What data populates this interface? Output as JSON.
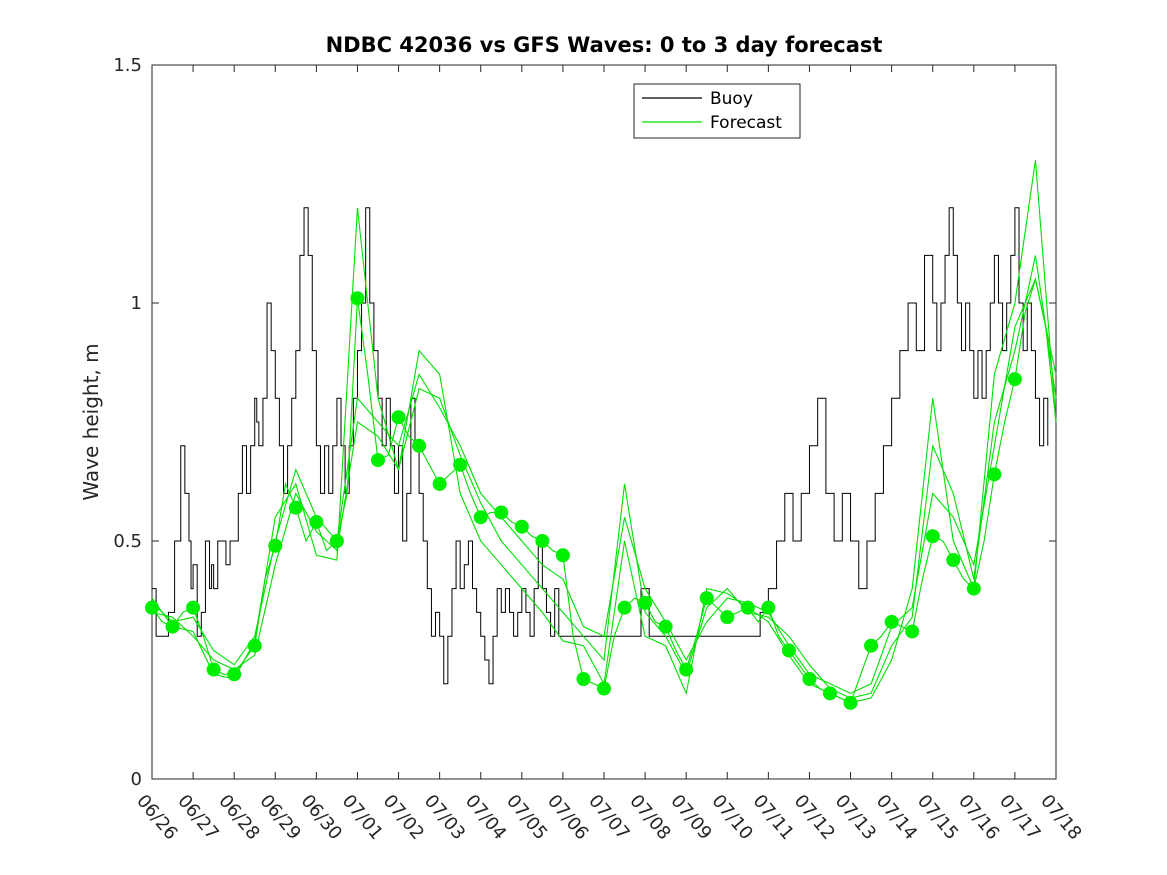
{
  "chart_data": {
    "type": "line",
    "title": "NDBC 42036 vs GFS Waves: 0 to 3 day forecast",
    "xlabel": "",
    "ylabel": "Wave height, m",
    "ylim": [
      0,
      1.5
    ],
    "xlim": [
      "06/26",
      "07/18"
    ],
    "x_ticks": [
      "06/26",
      "06/27",
      "06/28",
      "06/29",
      "06/30",
      "07/01",
      "07/02",
      "07/03",
      "07/04",
      "07/05",
      "07/06",
      "07/07",
      "07/08",
      "07/09",
      "07/10",
      "07/11",
      "07/12",
      "07/13",
      "07/14",
      "07/15",
      "07/16",
      "07/17",
      "07/18"
    ],
    "y_ticks": [
      0,
      0.5,
      1,
      1.5
    ],
    "y_tick_labels": [
      "0",
      "0.5",
      "1",
      "1.5"
    ],
    "legend": {
      "placement": "top-right",
      "entries": [
        "Buoy",
        "Forecast"
      ]
    },
    "colors": {
      "buoy": "#000000",
      "forecast": "#00e000",
      "analysis_points": "#00ee00"
    },
    "series": [
      {
        "name": "Buoy",
        "x": [
          0,
          0.1,
          0.4,
          0.55,
          0.7,
          0.8,
          0.9,
          0.95,
          1,
          1.1,
          1.2,
          1.3,
          1.4,
          1.45,
          1.5,
          1.6,
          1.8,
          1.9,
          2.1,
          2.2,
          2.3,
          2.4,
          2.5,
          2.55,
          2.6,
          2.7,
          2.8,
          2.9,
          3,
          3.1,
          3.2,
          3.3,
          3.4,
          3.5,
          3.6,
          3.7,
          3.8,
          3.9,
          4,
          4.1,
          4.2,
          4.3,
          4.4,
          4.5,
          4.6,
          4.7,
          4.8,
          4.9,
          5,
          5.1,
          5.2,
          5.3,
          5.4,
          5.5,
          5.6,
          5.7,
          5.8,
          5.9,
          6,
          6.1,
          6.2,
          6.3,
          6.4,
          6.5,
          6.6,
          6.7,
          6.8,
          6.9,
          7,
          7.1,
          7.2,
          7.3,
          7.4,
          7.5,
          7.6,
          7.7,
          7.8,
          7.9,
          8,
          8.1,
          8.2,
          8.3,
          8.4,
          8.5,
          8.6,
          8.7,
          8.8,
          8.9,
          9,
          9.1,
          9.2,
          9.3,
          9.4,
          9.5,
          9.6,
          9.7,
          9.8,
          9.9,
          10,
          10.1,
          10.2,
          10.3,
          10.4,
          10.5,
          10.6,
          10.7,
          10.8,
          10.9,
          11,
          11.1,
          11.2,
          11.3,
          11.4,
          11.5,
          11.6,
          11.7,
          11.8,
          11.9,
          12,
          12.1,
          12.2,
          12.3,
          12.4,
          12.5,
          12.6,
          12.7,
          12.8,
          12.9,
          13,
          13.1,
          13.2,
          13.3,
          13.4,
          13.5,
          13.6,
          13.7,
          13.8,
          13.9,
          14,
          14.2,
          14.4,
          14.6,
          14.8,
          15,
          15.2,
          15.4,
          15.6,
          15.8,
          16,
          16.2,
          16.4,
          16.6,
          16.8,
          17,
          17.2,
          17.4,
          17.6,
          17.8,
          18,
          18.2,
          18.4,
          18.6,
          18.8,
          19,
          19.1,
          19.2,
          19.3,
          19.4,
          19.5,
          19.6,
          19.7,
          19.8,
          19.9,
          20,
          20.1,
          20.2,
          20.3,
          20.4,
          20.5,
          20.6,
          20.7,
          20.8,
          20.9,
          21,
          21.1,
          21.2,
          21.3,
          21.4,
          21.5,
          21.6,
          21.7,
          21.8
        ],
        "values": [
          0.4,
          0.3,
          0.35,
          0.5,
          0.7,
          0.6,
          0.5,
          0.4,
          0.45,
          0.3,
          0.35,
          0.5,
          0.4,
          0.45,
          0.4,
          0.5,
          0.45,
          0.5,
          0.6,
          0.7,
          0.6,
          0.7,
          0.8,
          0.75,
          0.7,
          0.8,
          1.0,
          0.9,
          0.8,
          0.7,
          0.6,
          0.7,
          0.8,
          0.9,
          1.1,
          1.2,
          1.1,
          0.9,
          0.7,
          0.6,
          0.7,
          0.6,
          0.7,
          0.8,
          0.7,
          0.6,
          0.7,
          0.8,
          0.9,
          1.0,
          1.2,
          1.0,
          0.9,
          0.8,
          0.7,
          0.8,
          0.7,
          0.6,
          0.7,
          0.5,
          0.6,
          0.8,
          0.7,
          0.6,
          0.5,
          0.4,
          0.3,
          0.35,
          0.3,
          0.2,
          0.3,
          0.4,
          0.5,
          0.4,
          0.45,
          0.5,
          0.4,
          0.35,
          0.3,
          0.25,
          0.2,
          0.3,
          0.4,
          0.35,
          0.4,
          0.35,
          0.3,
          0.35,
          0.4,
          0.35,
          0.3,
          0.4,
          0.5,
          0.4,
          0.35,
          0.3,
          0.4,
          0.3,
          0.3,
          0.3,
          0.3,
          0.3,
          0.3,
          0.3,
          0.3,
          0.3,
          0.3,
          0.3,
          0.3,
          0.3,
          0.3,
          0.3,
          0.3,
          0.3,
          0.3,
          0.3,
          0.3,
          0.4,
          0.4,
          0.3,
          0.3,
          0.3,
          0.3,
          0.3,
          0.3,
          0.3,
          0.3,
          0.3,
          0.3,
          0.3,
          0.3,
          0.3,
          0.3,
          0.3,
          0.3,
          0.3,
          0.3,
          0.3,
          0.3,
          0.3,
          0.3,
          0.3,
          0.35,
          0.4,
          0.5,
          0.6,
          0.5,
          0.6,
          0.7,
          0.8,
          0.6,
          0.5,
          0.6,
          0.5,
          0.4,
          0.5,
          0.6,
          0.7,
          0.8,
          0.9,
          1.0,
          0.9,
          1.1,
          1.0,
          0.9,
          1.0,
          1.1,
          1.2,
          1.1,
          1.0,
          0.9,
          1.0,
          0.9,
          0.8,
          0.9,
          0.8,
          0.9,
          1.0,
          1.1,
          1.0,
          0.9,
          1.0,
          1.1,
          1.2,
          1.0,
          0.9,
          1.0,
          0.9,
          0.8,
          0.7,
          0.8,
          0.7
        ]
      },
      {
        "name": "Forecast",
        "x": [
          0,
          0.25,
          0.5,
          0.75,
          1,
          1.25,
          1.5,
          1.75,
          2,
          2.25,
          2.5,
          2.75,
          3,
          3.25,
          3.5,
          3.75,
          4,
          4.25,
          4.5,
          4.75,
          5,
          5.25,
          5.5,
          5.75,
          6,
          6.25,
          6.5,
          6.75,
          7,
          7.25,
          7.5,
          7.75,
          8,
          8.25,
          8.5,
          8.75,
          9,
          9.25,
          9.5,
          9.75,
          10,
          10.25,
          10.5,
          10.75,
          11,
          11.25,
          11.5,
          11.75,
          12,
          12.25,
          12.5,
          12.75,
          13,
          13.25,
          13.5,
          13.75,
          14,
          14.25,
          14.5,
          14.75,
          15,
          15.25,
          15.5,
          15.75,
          16,
          16.25,
          16.5,
          16.75,
          17,
          17.25,
          17.5,
          17.75,
          18,
          18.25,
          18.5,
          18.75,
          19,
          19.25,
          19.5,
          19.75,
          20,
          20.25,
          20.5,
          20.75,
          21,
          21.25,
          21.5,
          21.75,
          22
        ],
        "values": [
          0.36,
          0.33,
          0.32,
          0.35,
          0.36,
          0.3,
          0.23,
          0.22,
          0.22,
          0.25,
          0.28,
          0.42,
          0.49,
          0.62,
          0.57,
          0.5,
          0.54,
          0.48,
          0.5,
          0.6,
          1.01,
          0.85,
          0.67,
          0.68,
          0.76,
          0.72,
          0.7,
          0.66,
          0.62,
          0.64,
          0.66,
          0.6,
          0.55,
          0.56,
          0.56,
          0.54,
          0.53,
          0.51,
          0.5,
          0.48,
          0.47,
          0.3,
          0.21,
          0.2,
          0.19,
          0.3,
          0.36,
          0.38,
          0.37,
          0.33,
          0.32,
          0.27,
          0.23,
          0.3,
          0.38,
          0.36,
          0.34,
          0.35,
          0.36,
          0.33,
          0.36,
          0.3,
          0.27,
          0.24,
          0.21,
          0.19,
          0.18,
          0.17,
          0.16,
          0.22,
          0.28,
          0.3,
          0.33,
          0.32,
          0.31,
          0.42,
          0.51,
          0.5,
          0.46,
          0.42,
          0.4,
          0.5,
          0.64,
          0.75,
          0.84,
          0.98,
          1.05,
          0.95,
          0.75
        ]
      },
      {
        "name": "",
        "x": [
          0,
          0.5,
          1,
          1.5,
          2,
          2.5,
          3,
          3.5,
          4,
          4.5,
          5,
          5.5,
          6,
          6.5,
          7,
          7.5,
          8,
          8.5,
          9,
          9.5,
          10,
          10.5,
          11,
          11.5,
          12,
          12.5,
          13,
          13.5,
          14,
          14.5,
          15,
          15.5,
          16,
          16.5,
          17,
          17.5,
          18,
          18.5,
          19,
          19.5,
          20,
          20.5,
          21,
          21.5,
          22
        ],
        "values": [
          0.37,
          0.33,
          0.34,
          0.27,
          0.24,
          0.3,
          0.5,
          0.65,
          0.55,
          0.5,
          0.8,
          0.75,
          0.7,
          0.85,
          0.78,
          0.7,
          0.6,
          0.55,
          0.5,
          0.45,
          0.42,
          0.32,
          0.3,
          0.55,
          0.4,
          0.33,
          0.25,
          0.33,
          0.38,
          0.37,
          0.35,
          0.28,
          0.22,
          0.2,
          0.18,
          0.2,
          0.32,
          0.36,
          0.6,
          0.55,
          0.45,
          0.7,
          0.95,
          1.05,
          0.85
        ]
      },
      {
        "name": "",
        "x": [
          0,
          0.5,
          1,
          1.5,
          2,
          2.5,
          3,
          3.5,
          4,
          4.5,
          5,
          5.5,
          6,
          6.5,
          7,
          7.5,
          8,
          8.5,
          9,
          9.5,
          10,
          10.5,
          11,
          11.5,
          12,
          12.5,
          13,
          13.5,
          14,
          14.5,
          15,
          15.5,
          16,
          16.5,
          17,
          17.5,
          18,
          18.5,
          19,
          19.5,
          20,
          20.5,
          21,
          21.5,
          22
        ],
        "values": [
          0.35,
          0.34,
          0.3,
          0.25,
          0.23,
          0.26,
          0.45,
          0.6,
          0.52,
          0.48,
          0.75,
          0.72,
          0.65,
          0.82,
          0.8,
          0.68,
          0.58,
          0.5,
          0.45,
          0.4,
          0.35,
          0.3,
          0.25,
          0.62,
          0.35,
          0.3,
          0.22,
          0.36,
          0.4,
          0.35,
          0.34,
          0.3,
          0.24,
          0.19,
          0.17,
          0.18,
          0.28,
          0.34,
          0.7,
          0.6,
          0.42,
          0.75,
          0.9,
          1.1,
          0.8
        ]
      },
      {
        "name": "",
        "x": [
          0,
          0.5,
          1,
          1.5,
          2,
          2.5,
          3,
          3.5,
          4,
          4.5,
          5,
          5.5,
          6,
          6.5,
          7,
          7.5,
          8,
          8.5,
          9,
          9.5,
          10,
          10.5,
          11,
          11.5,
          12,
          12.5,
          13,
          13.5,
          14,
          14.5,
          15,
          15.5,
          16,
          16.5,
          17,
          17.5,
          18,
          18.5,
          19,
          19.5,
          20,
          20.5,
          21,
          21.5,
          22
        ],
        "values": [
          0.38,
          0.32,
          0.31,
          0.22,
          0.21,
          0.29,
          0.55,
          0.62,
          0.47,
          0.46,
          1.2,
          0.8,
          0.65,
          0.9,
          0.85,
          0.6,
          0.5,
          0.45,
          0.4,
          0.35,
          0.29,
          0.28,
          0.2,
          0.5,
          0.3,
          0.28,
          0.18,
          0.4,
          0.39,
          0.36,
          0.33,
          0.26,
          0.2,
          0.18,
          0.16,
          0.17,
          0.25,
          0.4,
          0.8,
          0.5,
          0.4,
          0.85,
          1.0,
          1.3,
          0.75
        ]
      }
    ],
    "analysis_points": {
      "x": [
        0,
        0.5,
        1,
        1.5,
        2,
        2.5,
        3,
        3.5,
        4,
        4.5,
        5,
        5.5,
        6,
        6.5,
        7,
        7.5,
        8,
        8.5,
        9,
        9.5,
        10,
        10.5,
        11,
        11.5,
        12,
        12.5,
        13,
        13.5,
        14,
        14.5,
        15,
        15.5,
        16,
        16.5,
        17,
        17.5,
        18,
        18.5,
        19,
        19.5,
        20,
        20.5,
        21
      ],
      "values": [
        0.36,
        0.32,
        0.36,
        0.23,
        0.22,
        0.28,
        0.49,
        0.57,
        0.54,
        0.5,
        1.01,
        0.67,
        0.76,
        0.7,
        0.62,
        0.66,
        0.55,
        0.56,
        0.53,
        0.5,
        0.47,
        0.21,
        0.19,
        0.36,
        0.37,
        0.32,
        0.23,
        0.38,
        0.34,
        0.36,
        0.36,
        0.27,
        0.21,
        0.18,
        0.16,
        0.28,
        0.33,
        0.31,
        0.51,
        0.46,
        0.4,
        0.64,
        0.84
      ]
    }
  }
}
